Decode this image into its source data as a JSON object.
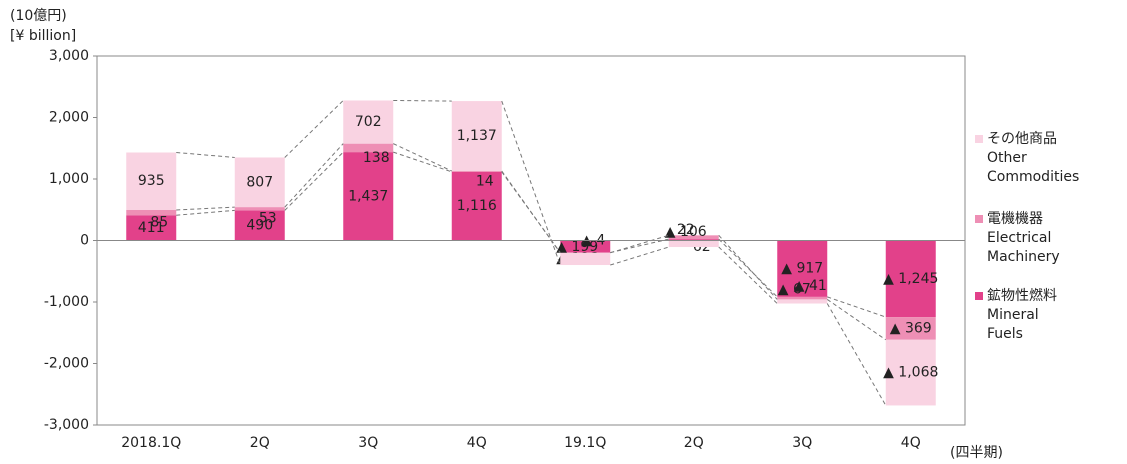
{
  "chart_data": {
    "type": "stacked_bar",
    "y_label_ja": "(10億円)",
    "y_label_en": "[¥ billion]",
    "x_label": "(四半期)",
    "categories": [
      "2018.1Q",
      "2Q",
      "3Q",
      "4Q",
      "19.1Q",
      "2Q",
      "3Q",
      "4Q"
    ],
    "series": [
      {
        "name": "鉱物性燃料\nMineral\nFuels",
        "color": "#e2418a",
        "values": [
          411,
          490,
          1437,
          1116,
          -196,
          22,
          -917,
          -1245
        ],
        "value_labels": [
          "411",
          "490",
          "1,437",
          "1,116",
          "▲ 196",
          "22",
          "▲ 917",
          "▲ 1,245"
        ]
      },
      {
        "name": "電機機器\nElectrical\nMachinery",
        "color": "#ee8fb5",
        "values": [
          85,
          53,
          138,
          14,
          -4,
          62,
          -41,
          -369
        ],
        "value_labels": [
          "85",
          "53",
          "138",
          "14",
          "▲ 4",
          "62",
          "▲ 41",
          "▲ 369"
        ]
      },
      {
        "name": "その他商品\nOther\nCommodities",
        "color": "#f9d3e2",
        "values": [
          935,
          807,
          702,
          1137,
          -199,
          -106,
          -67,
          -1068
        ],
        "value_labels": [
          "935",
          "807",
          "702",
          "1,137",
          "▲ 199",
          "▲ 106",
          "▲ 67",
          "▲ 1,068"
        ]
      }
    ],
    "ylim": [
      -3000,
      3000
    ],
    "yticks": [
      {
        "value": -3000,
        "label": "-3,000"
      },
      {
        "value": -2000,
        "label": "-2,000"
      },
      {
        "value": -1000,
        "label": "-1,000"
      },
      0,
      {
        "value": 1000,
        "label": "1,000"
      },
      {
        "value": 2000,
        "label": "2,000"
      },
      {
        "value": 3000,
        "label": "3,000"
      }
    ],
    "legend": "right"
  }
}
